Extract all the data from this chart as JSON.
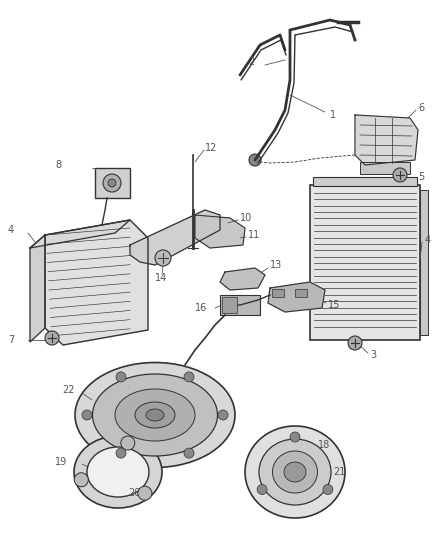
{
  "bg_color": "#ffffff",
  "line_color": "#333333",
  "label_color": "#555555",
  "figsize": [
    4.38,
    5.33
  ],
  "dpi": 100
}
